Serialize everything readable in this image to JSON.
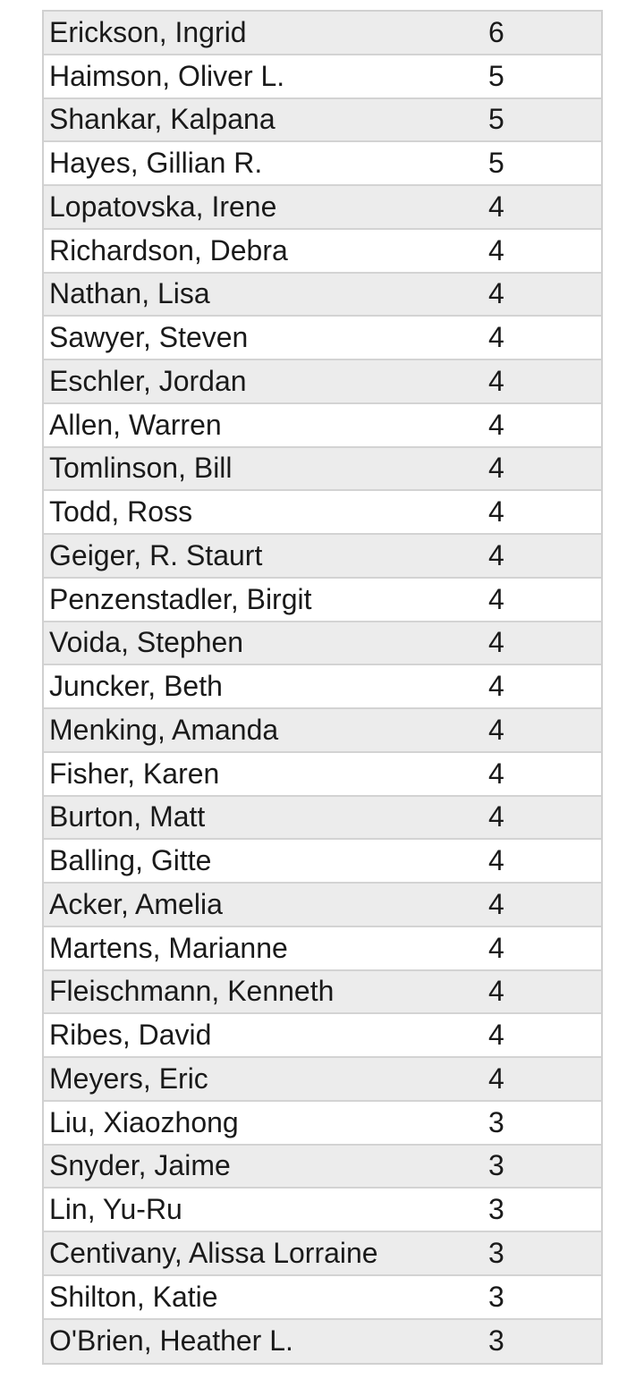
{
  "rows": [
    {
      "name": "Erickson, Ingrid",
      "count": "6"
    },
    {
      "name": "Haimson, Oliver L.",
      "count": "5"
    },
    {
      "name": "Shankar, Kalpana",
      "count": "5"
    },
    {
      "name": "Hayes, Gillian R.",
      "count": "5"
    },
    {
      "name": "Lopatovska, Irene",
      "count": "4"
    },
    {
      "name": "Richardson, Debra",
      "count": "4"
    },
    {
      "name": "Nathan, Lisa",
      "count": "4"
    },
    {
      "name": "Sawyer, Steven",
      "count": "4"
    },
    {
      "name": "Eschler, Jordan",
      "count": "4"
    },
    {
      "name": "Allen, Warren",
      "count": "4"
    },
    {
      "name": "Tomlinson, Bill",
      "count": "4"
    },
    {
      "name": "Todd, Ross",
      "count": "4"
    },
    {
      "name": "Geiger, R. Staurt",
      "count": "4"
    },
    {
      "name": "Penzenstadler, Birgit",
      "count": "4"
    },
    {
      "name": "Voida, Stephen",
      "count": "4"
    },
    {
      "name": "Juncker, Beth",
      "count": "4"
    },
    {
      "name": "Menking, Amanda",
      "count": "4"
    },
    {
      "name": "Fisher, Karen",
      "count": "4"
    },
    {
      "name": "Burton, Matt",
      "count": "4"
    },
    {
      "name": "Balling, Gitte",
      "count": "4"
    },
    {
      "name": "Acker, Amelia",
      "count": "4"
    },
    {
      "name": "Martens, Marianne",
      "count": "4"
    },
    {
      "name": "Fleischmann, Kenneth",
      "count": "4"
    },
    {
      "name": "Ribes, David",
      "count": "4"
    },
    {
      "name": "Meyers, Eric",
      "count": "4"
    },
    {
      "name": "Liu, Xiaozhong",
      "count": "3"
    },
    {
      "name": "Snyder, Jaime",
      "count": "3"
    },
    {
      "name": "Lin, Yu-Ru",
      "count": "3"
    },
    {
      "name": "Centivany, Alissa Lorraine",
      "count": "3"
    },
    {
      "name": "Shilton, Katie",
      "count": "3"
    },
    {
      "name": "O'Brien, Heather L.",
      "count": "3"
    }
  ]
}
